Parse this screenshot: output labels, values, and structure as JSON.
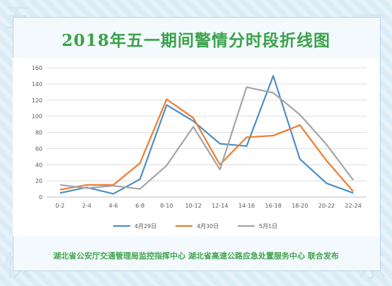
{
  "page": {
    "title": "2018年五一期间警情分时段折线图",
    "footer": "湖北省公安厅交通管理局监控指挥中心 湖北省高速公路应急处置服务中心 联合发布",
    "corner_chars": [
      "五",
      "一",
      "快",
      "乐"
    ]
  },
  "chart_data": {
    "type": "line",
    "title": "2018年五一期间警情分时段折线图",
    "xlabel": "",
    "ylabel": "",
    "categories": [
      "0-2",
      "2-4",
      "4-6",
      "6-8",
      "8-10",
      "10-12",
      "12-14",
      "14-16",
      "16-18",
      "18-20",
      "20-22",
      "22-24"
    ],
    "ylim": [
      0,
      160
    ],
    "yticks": [
      0,
      20,
      40,
      60,
      80,
      100,
      120,
      140,
      160
    ],
    "grid": true,
    "legend": "bottom",
    "series": [
      {
        "name": "4月29日",
        "color": "#4e8fc6",
        "values": [
          5,
          12,
          4,
          22,
          114,
          94,
          66,
          63,
          150,
          47,
          17,
          5
        ]
      },
      {
        "name": "4月30日",
        "color": "#ed7d31",
        "values": [
          9,
          15,
          15,
          42,
          121,
          98,
          40,
          74,
          76,
          89,
          45,
          7
        ]
      },
      {
        "name": "5月1日",
        "color": "#a5a5a5",
        "values": [
          15,
          11,
          14,
          10,
          39,
          87,
          34,
          136,
          129,
          102,
          65,
          21
        ]
      }
    ]
  }
}
